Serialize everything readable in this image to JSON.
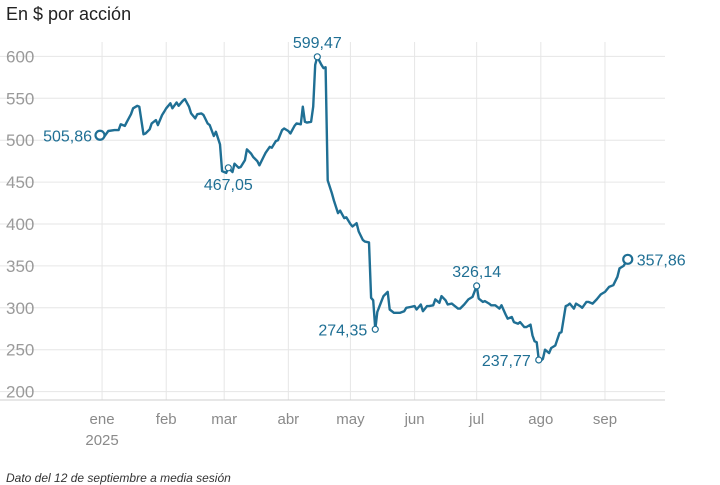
{
  "title": "En $ por acción",
  "note": "Dato del 12 de septiembre a media sesión",
  "colors": {
    "line": "#1f6f94",
    "grid": "#e6e6e6",
    "tick": "#9a9a9a"
  },
  "chart_data": {
    "type": "line",
    "title": "En $ por acción",
    "xlabel": "",
    "ylabel": "",
    "ylim": [
      190,
      610
    ],
    "yticks": [
      200,
      250,
      300,
      350,
      400,
      450,
      500,
      550,
      600
    ],
    "grid": true,
    "months": [
      {
        "label": "ene",
        "year": "2025",
        "date": "2025-01-01"
      },
      {
        "label": "feb",
        "date": "2025-02-01"
      },
      {
        "label": "mar",
        "date": "2025-03-01"
      },
      {
        "label": "abr",
        "date": "2025-04-01"
      },
      {
        "label": "may",
        "date": "2025-05-01"
      },
      {
        "label": "jun",
        "date": "2025-06-01"
      },
      {
        "label": "jul",
        "date": "2025-07-01"
      },
      {
        "label": "ago",
        "date": "2025-08-01"
      },
      {
        "label": "sep",
        "date": "2025-09-01"
      }
    ],
    "xlim": [
      "2024-12-31",
      "2025-09-30"
    ],
    "series": [
      {
        "points": [
          [
            "2024-12-31",
            505.9
          ],
          [
            "2025-01-02",
            504
          ],
          [
            "2025-01-04",
            511
          ],
          [
            "2025-01-07",
            512
          ],
          [
            "2025-01-09",
            512
          ],
          [
            "2025-01-10",
            519
          ],
          [
            "2025-01-12",
            517
          ],
          [
            "2025-01-13",
            522
          ],
          [
            "2025-01-15",
            531
          ],
          [
            "2025-01-16",
            538
          ],
          [
            "2025-01-18",
            541
          ],
          [
            "2025-01-19",
            540
          ],
          [
            "2025-01-21",
            507
          ],
          [
            "2025-01-22",
            508
          ],
          [
            "2025-01-24",
            513
          ],
          [
            "2025-01-25",
            520
          ],
          [
            "2025-01-27",
            524
          ],
          [
            "2025-01-28",
            518
          ],
          [
            "2025-01-30",
            530
          ],
          [
            "2025-01-31",
            534
          ],
          [
            "2025-02-01",
            538
          ],
          [
            "2025-02-03",
            544
          ],
          [
            "2025-02-04",
            538
          ],
          [
            "2025-02-06",
            545
          ],
          [
            "2025-02-07",
            541
          ],
          [
            "2025-02-09",
            547
          ],
          [
            "2025-02-10",
            549
          ],
          [
            "2025-02-12",
            540
          ],
          [
            "2025-02-13",
            532
          ],
          [
            "2025-02-15",
            526
          ],
          [
            "2025-02-16",
            531
          ],
          [
            "2025-02-18",
            532
          ],
          [
            "2025-02-19",
            530
          ],
          [
            "2025-02-21",
            520
          ],
          [
            "2025-02-22",
            518
          ],
          [
            "2025-02-24",
            505
          ],
          [
            "2025-02-25",
            510
          ],
          [
            "2025-02-27",
            495
          ],
          [
            "2025-02-28",
            463
          ],
          [
            "2025-03-02",
            461
          ],
          [
            "2025-03-03",
            467
          ],
          [
            "2025-03-05",
            462
          ],
          [
            "2025-03-06",
            472
          ],
          [
            "2025-03-08",
            467
          ],
          [
            "2025-03-09",
            468
          ],
          [
            "2025-03-11",
            476
          ],
          [
            "2025-03-12",
            489
          ],
          [
            "2025-03-14",
            484
          ],
          [
            "2025-03-15",
            480
          ],
          [
            "2025-03-17",
            475
          ],
          [
            "2025-03-18",
            470
          ],
          [
            "2025-03-20",
            480
          ],
          [
            "2025-03-21",
            485
          ],
          [
            "2025-03-23",
            492
          ],
          [
            "2025-03-24",
            491
          ],
          [
            "2025-03-26",
            499
          ],
          [
            "2025-03-27",
            500
          ],
          [
            "2025-03-29",
            512
          ],
          [
            "2025-03-30",
            514
          ],
          [
            "2025-04-01",
            511
          ],
          [
            "2025-04-02",
            508
          ],
          [
            "2025-04-04",
            517
          ],
          [
            "2025-04-05",
            520
          ],
          [
            "2025-04-07",
            519
          ],
          [
            "2025-04-08",
            540
          ],
          [
            "2025-04-09",
            522
          ],
          [
            "2025-04-10",
            521
          ],
          [
            "2025-04-12",
            522
          ],
          [
            "2025-04-13",
            540
          ],
          [
            "2025-04-14",
            590
          ],
          [
            "2025-04-15",
            599.5
          ],
          [
            "2025-04-17",
            590
          ],
          [
            "2025-04-18",
            586
          ],
          [
            "2025-04-19",
            587
          ],
          [
            "2025-04-20",
            452
          ],
          [
            "2025-04-22",
            437
          ],
          [
            "2025-04-23",
            428
          ],
          [
            "2025-04-25",
            413
          ],
          [
            "2025-04-26",
            416
          ],
          [
            "2025-04-28",
            407
          ],
          [
            "2025-04-29",
            408
          ],
          [
            "2025-05-01",
            400
          ],
          [
            "2025-05-02",
            397
          ],
          [
            "2025-05-04",
            401
          ],
          [
            "2025-05-05",
            391
          ],
          [
            "2025-05-07",
            381
          ],
          [
            "2025-05-08",
            379
          ],
          [
            "2025-05-10",
            378
          ],
          [
            "2025-05-11",
            312
          ],
          [
            "2025-05-12",
            309
          ],
          [
            "2025-05-13",
            274.4
          ],
          [
            "2025-05-14",
            295
          ],
          [
            "2025-05-16",
            308
          ],
          [
            "2025-05-17",
            314
          ],
          [
            "2025-05-19",
            319
          ],
          [
            "2025-05-20",
            298
          ],
          [
            "2025-05-22",
            294
          ],
          [
            "2025-05-24",
            294
          ],
          [
            "2025-05-25",
            294
          ],
          [
            "2025-05-27",
            296
          ],
          [
            "2025-05-28",
            300
          ],
          [
            "2025-05-30",
            301
          ],
          [
            "2025-06-01",
            302
          ],
          [
            "2025-06-02",
            298
          ],
          [
            "2025-06-04",
            304
          ],
          [
            "2025-06-05",
            296
          ],
          [
            "2025-06-07",
            302
          ],
          [
            "2025-06-08",
            302
          ],
          [
            "2025-06-10",
            303
          ],
          [
            "2025-06-11",
            310
          ],
          [
            "2025-06-13",
            306
          ],
          [
            "2025-06-14",
            314
          ],
          [
            "2025-06-16",
            309
          ],
          [
            "2025-06-17",
            304
          ],
          [
            "2025-06-19",
            305
          ],
          [
            "2025-06-20",
            303
          ],
          [
            "2025-06-22",
            299
          ],
          [
            "2025-06-23",
            299
          ],
          [
            "2025-06-25",
            304
          ],
          [
            "2025-06-27",
            310
          ],
          [
            "2025-06-29",
            313
          ],
          [
            "2025-07-01",
            326.1
          ],
          [
            "2025-07-02",
            311
          ],
          [
            "2025-07-04",
            307
          ],
          [
            "2025-07-05",
            308
          ],
          [
            "2025-07-07",
            305
          ],
          [
            "2025-07-08",
            303
          ],
          [
            "2025-07-10",
            303
          ],
          [
            "2025-07-12",
            299
          ],
          [
            "2025-07-13",
            303
          ],
          [
            "2025-07-15",
            292
          ],
          [
            "2025-07-16",
            287
          ],
          [
            "2025-07-18",
            289
          ],
          [
            "2025-07-19",
            283
          ],
          [
            "2025-07-21",
            281
          ],
          [
            "2025-07-22",
            283
          ],
          [
            "2025-07-24",
            277
          ],
          [
            "2025-07-25",
            277
          ],
          [
            "2025-07-27",
            280
          ],
          [
            "2025-07-28",
            267
          ],
          [
            "2025-07-29",
            260
          ],
          [
            "2025-07-30",
            259
          ],
          [
            "2025-07-31",
            237.8
          ],
          [
            "2025-08-01",
            237
          ],
          [
            "2025-08-02",
            239
          ],
          [
            "2025-08-03",
            250
          ],
          [
            "2025-08-05",
            246
          ],
          [
            "2025-08-06",
            252
          ],
          [
            "2025-08-08",
            255
          ],
          [
            "2025-08-10",
            270
          ],
          [
            "2025-08-11",
            271
          ],
          [
            "2025-08-13",
            302
          ],
          [
            "2025-08-14",
            303
          ],
          [
            "2025-08-15",
            305
          ],
          [
            "2025-08-17",
            299
          ],
          [
            "2025-08-18",
            305
          ],
          [
            "2025-08-20",
            302
          ],
          [
            "2025-08-21",
            300
          ],
          [
            "2025-08-23",
            307
          ],
          [
            "2025-08-24",
            307
          ],
          [
            "2025-08-26",
            305
          ],
          [
            "2025-08-28",
            310
          ],
          [
            "2025-08-30",
            316
          ],
          [
            "2025-09-01",
            319
          ],
          [
            "2025-09-03",
            325
          ],
          [
            "2025-09-05",
            327
          ],
          [
            "2025-09-07",
            337
          ],
          [
            "2025-09-08",
            347
          ],
          [
            "2025-09-10",
            350
          ],
          [
            "2025-09-12",
            357.9
          ]
        ]
      }
    ],
    "annotations": [
      {
        "date": "2024-12-31",
        "value": 505.86,
        "text": "505,86",
        "marker": "endpoint",
        "side": "left"
      },
      {
        "date": "2025-03-03",
        "value": 467.05,
        "text": "467,05",
        "marker": "small",
        "side": "below"
      },
      {
        "date": "2025-04-15",
        "value": 599.47,
        "text": "599,47",
        "marker": "small",
        "side": "above"
      },
      {
        "date": "2025-05-13",
        "value": 274.35,
        "text": "274,35",
        "marker": "small",
        "side": "left"
      },
      {
        "date": "2025-07-01",
        "value": 326.14,
        "text": "326,14",
        "marker": "small",
        "side": "above"
      },
      {
        "date": "2025-07-31",
        "value": 237.77,
        "text": "237,77",
        "marker": "small",
        "side": "left"
      },
      {
        "date": "2025-09-12",
        "value": 357.86,
        "text": "357,86",
        "marker": "endpoint",
        "side": "right"
      }
    ]
  }
}
